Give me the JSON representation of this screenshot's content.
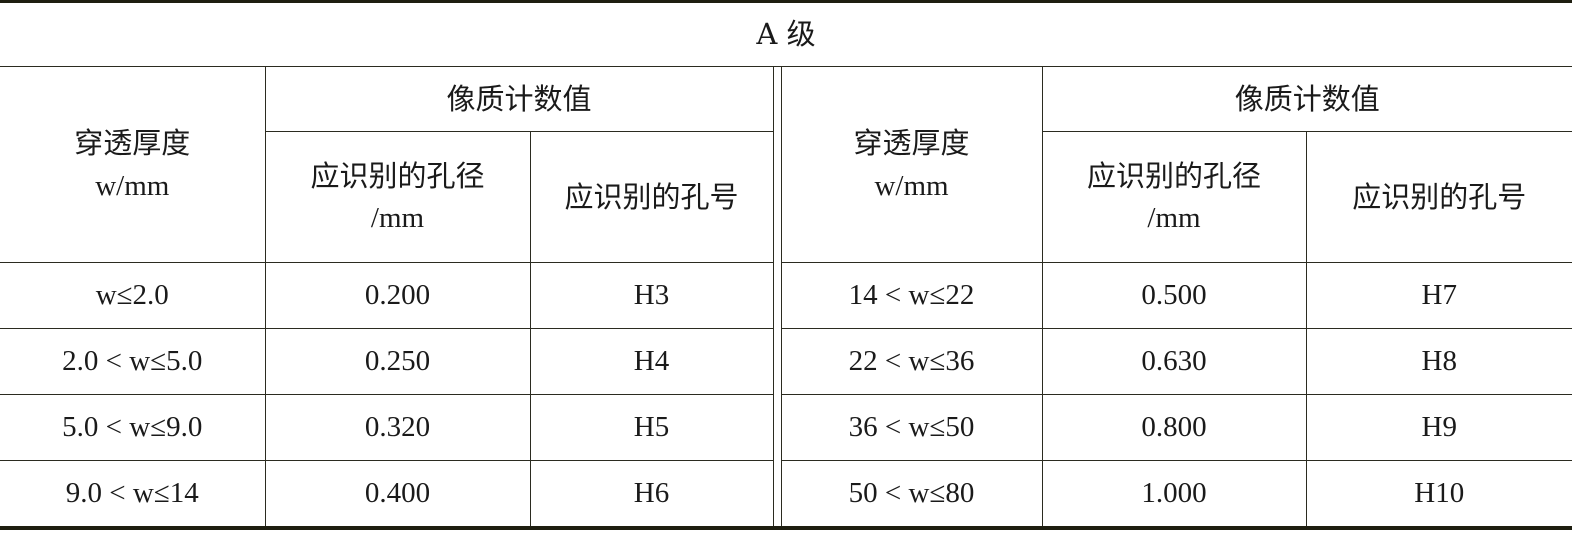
{
  "title": "A 级",
  "headers": {
    "thickness": "穿透厚度",
    "thickness_unit": "w/mm",
    "iqi_value": "像质计数值",
    "hole_diameter": "应识别的孔径",
    "hole_diameter_unit": "/mm",
    "hole_number": "应识别的孔号"
  },
  "left_rows": [
    {
      "thickness": "w≤2.0",
      "diameter": "0.200",
      "hole": "H3"
    },
    {
      "thickness": "2.0 < w≤5.0",
      "diameter": "0.250",
      "hole": "H4"
    },
    {
      "thickness": "5.0 < w≤9.0",
      "diameter": "0.320",
      "hole": "H5"
    },
    {
      "thickness": "9.0 < w≤14",
      "diameter": "0.400",
      "hole": "H6"
    }
  ],
  "right_rows": [
    {
      "thickness": "14 < w≤22",
      "diameter": "0.500",
      "hole": "H7"
    },
    {
      "thickness": "22 < w≤36",
      "diameter": "0.630",
      "hole": "H8"
    },
    {
      "thickness": "36 < w≤50",
      "diameter": "0.800",
      "hole": "H9"
    },
    {
      "thickness": "50 < w≤80",
      "diameter": "1.000",
      "hole": "H10"
    }
  ]
}
